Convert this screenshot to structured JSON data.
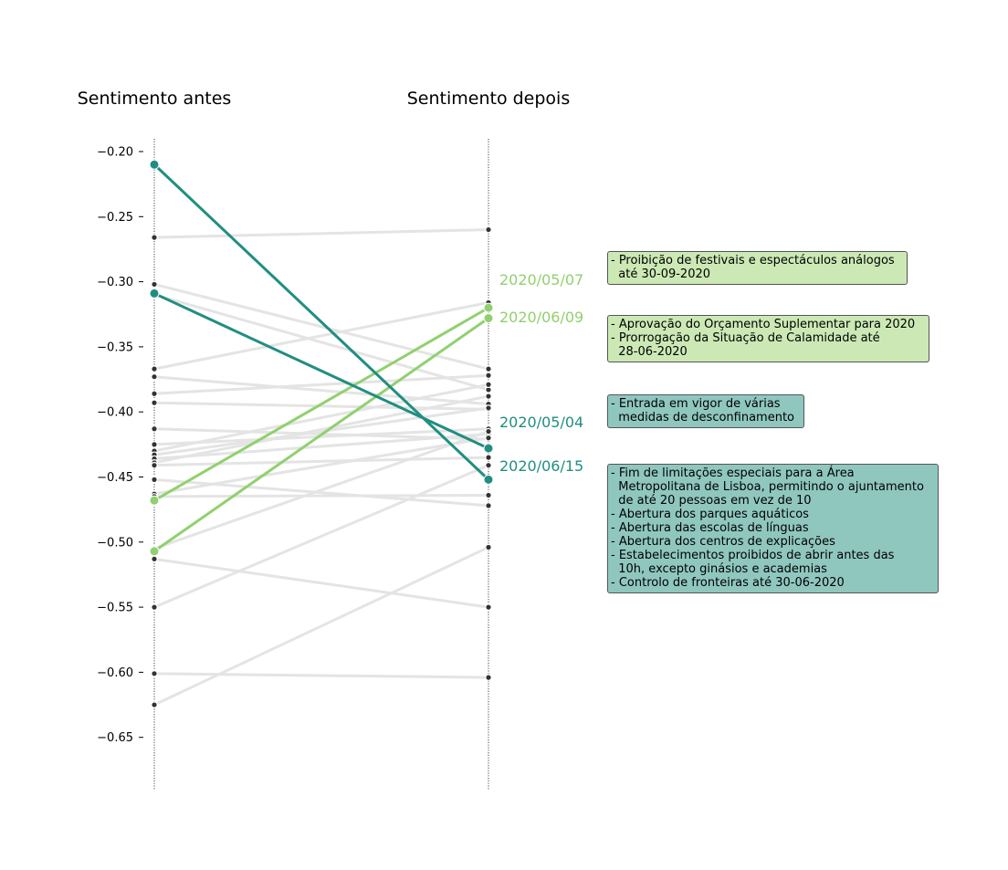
{
  "chart_data": {
    "type": "slope",
    "left_title": "Sentimento antes",
    "right_title": "Sentimento depois",
    "ylim": [
      -0.7,
      -0.2
    ],
    "yticks": [
      -0.2,
      -0.25,
      -0.3,
      -0.35,
      -0.4,
      -0.45,
      -0.5,
      -0.55,
      -0.6,
      -0.65
    ],
    "ytick_labels": [
      "−0.20",
      "−0.25",
      "−0.30",
      "−0.35",
      "−0.40",
      "−0.45",
      "−0.50",
      "−0.55",
      "−0.60",
      "−0.65"
    ],
    "background_pairs": [
      [
        -0.266,
        -0.26
      ],
      [
        -0.302,
        -0.367
      ],
      [
        -0.31,
        -0.383
      ],
      [
        -0.367,
        -0.316
      ],
      [
        -0.373,
        -0.394
      ],
      [
        -0.386,
        -0.372
      ],
      [
        -0.393,
        -0.398
      ],
      [
        -0.413,
        -0.421
      ],
      [
        -0.425,
        -0.413
      ],
      [
        -0.43,
        -0.379
      ],
      [
        -0.433,
        -0.397
      ],
      [
        -0.436,
        -0.417
      ],
      [
        -0.439,
        -0.388
      ],
      [
        -0.441,
        -0.435
      ],
      [
        -0.452,
        -0.472
      ],
      [
        -0.463,
        -0.42
      ],
      [
        -0.465,
        -0.464
      ],
      [
        -0.505,
        -0.415
      ],
      [
        -0.513,
        -0.55
      ],
      [
        -0.55,
        -0.441
      ],
      [
        -0.601,
        -0.604
      ],
      [
        -0.625,
        -0.504
      ]
    ],
    "highlighted": [
      {
        "name": "2020/05/07",
        "before": -0.468,
        "after": -0.32,
        "color": "#91d06f"
      },
      {
        "name": "2020/06/09",
        "before": -0.507,
        "after": -0.328,
        "color": "#91d06f"
      },
      {
        "name": "2020/05/04",
        "before": -0.309,
        "after": -0.428,
        "color": "#218e81"
      },
      {
        "name": "2020/06/15",
        "before": -0.21,
        "after": -0.452,
        "color": "#218e81"
      }
    ],
    "annotations": [
      {
        "bg": "#cce9b5",
        "lines": [
          "- Proibição de festivais e espectáculos análogos",
          "  até 30-09-2020"
        ]
      },
      {
        "bg": "#cce9b5",
        "lines": [
          "- Aprovação do Orçamento Suplementar para 2020",
          "- Prorrogação da Situação de Calamidade até",
          "  28-06-2020"
        ]
      },
      {
        "bg": "#8fc7bf",
        "lines": [
          "- Entrada em vigor de várias",
          "  medidas de desconfinamento"
        ]
      },
      {
        "bg": "#8fc7bf",
        "lines": [
          "- Fim de limitações especiais para a Área",
          "  Metropolitana de Lisboa, permitindo o ajuntamento",
          "  de até 20 pessoas em vez de 10",
          "- Abertura dos parques aquáticos",
          "- Abertura das escolas de línguas",
          "- Abertura dos centros de explicações",
          "- Estabelecimentos proibidos de abrir antes das",
          "  10h, excepto ginásios e academias",
          "- Controlo de fronteiras até 30-06-2020"
        ]
      }
    ],
    "background_line_color": "#e4e4e4",
    "marker_color": "#333333",
    "axis_line_color": "#444444"
  }
}
